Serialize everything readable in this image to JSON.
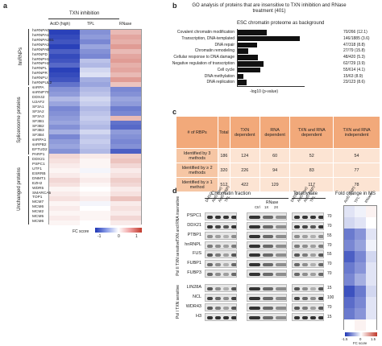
{
  "panel_a": {
    "label": "a",
    "header": "TXN inhibition",
    "columns": [
      "ActD (high)",
      "TPL",
      "RNase"
    ],
    "groups": [
      "hnRNPs",
      "Spliceosome proteins",
      "Unchanged proteins"
    ],
    "rows": [
      "hnRNPA0",
      "hnRNPA1",
      "hnRNPA2B1",
      "hnRNPA3",
      "hnRNPAB",
      "hnRNPD",
      "hnRNPH1",
      "hnRNPH2",
      "hnRNPL",
      "hnRNPR",
      "hnRNPU",
      "hnRNPUL2",
      "snRPA",
      "snRNP70",
      "DDX42",
      "U2AF2",
      "SF3A1",
      "SF3A2",
      "SF3A3",
      "SF3B1",
      "SF3B2",
      "SF3B3",
      "SF3B4",
      "snRPA1",
      "snRPB2",
      "EFTUD2",
      "PARP1",
      "DDX21",
      "PSPC1",
      "UTF1",
      "ESRRB",
      "DNMT1",
      "EZH2",
      "WDR5",
      "SMARCA5",
      "TOP1",
      "MCM7",
      "MCM6",
      "MCM2",
      "MCM5",
      "MCM6"
    ],
    "values": [
      [
        -0.95,
        -0.55,
        0.35
      ],
      [
        -0.9,
        -0.5,
        0.45
      ],
      [
        -0.85,
        -0.6,
        0.4
      ],
      [
        -0.95,
        -0.45,
        0.5
      ],
      [
        -0.8,
        -0.55,
        0.35
      ],
      [
        -0.9,
        -0.6,
        0.45
      ],
      [
        -0.85,
        -0.3,
        0.5
      ],
      [
        -0.75,
        -0.35,
        0.4
      ],
      [
        -0.95,
        -0.2,
        0.45
      ],
      [
        -0.9,
        -0.15,
        0.35
      ],
      [
        -0.85,
        -0.4,
        0.5
      ],
      [
        -0.7,
        -0.45,
        0.3
      ],
      [
        -0.55,
        -0.35,
        -0.6
      ],
      [
        -0.5,
        -0.3,
        -0.55
      ],
      [
        -0.35,
        -0.2,
        -0.45
      ],
      [
        -0.45,
        -0.25,
        -0.5
      ],
      [
        -0.6,
        -0.35,
        -0.65
      ],
      [
        -0.55,
        -0.3,
        -0.6
      ],
      [
        -0.5,
        -0.25,
        0.35
      ],
      [
        -0.45,
        -0.3,
        -0.7
      ],
      [
        -0.55,
        -0.35,
        -0.75
      ],
      [
        -0.4,
        -0.2,
        -0.5
      ],
      [
        -0.6,
        -0.3,
        -0.55
      ],
      [
        -0.5,
        -0.25,
        -0.6
      ],
      [
        -0.45,
        -0.3,
        -0.55
      ],
      [
        -0.55,
        -0.35,
        -0.8
      ],
      [
        0.2,
        0.1,
        0.25
      ],
      [
        0.15,
        0.05,
        0.3
      ],
      [
        0.1,
        0.05,
        0.2
      ],
      [
        0.05,
        -0.05,
        0.1
      ],
      [
        0.1,
        0.05,
        0.15
      ],
      [
        0.2,
        0.1,
        0.25
      ],
      [
        0.15,
        0.05,
        0.2
      ],
      [
        0.05,
        0.0,
        0.1
      ],
      [
        0.1,
        0.05,
        0.15
      ],
      [
        0.15,
        0.1,
        0.3
      ],
      [
        0.05,
        -0.05,
        0.1
      ],
      [
        0.1,
        0.0,
        0.15
      ],
      [
        0.05,
        0.05,
        0.1
      ],
      [
        0.1,
        0.05,
        0.2
      ],
      [
        0.05,
        0.0,
        0.1
      ]
    ],
    "legend_title": "FC score",
    "legend_ticks": [
      "-1",
      "0",
      "1"
    ]
  },
  "panel_b": {
    "label": "b",
    "title": "GO analysis of proteins that are insensitive to TXN inhibition and RNase treatment (401)",
    "subtitle": "ESC chromatin proteome as background",
    "xlabel": "-log10 (p-value)"
  },
  "chart_data": {
    "type": "bar",
    "categories": [
      "Covalent chromatin modification",
      "Transcription, DNA-templated",
      "DNA repair",
      "Chromatin remodeling",
      "Cellular response to DNA damage",
      "Negative regulation of transcription",
      "Cell cycle",
      "DNA methylation",
      "DNA replication"
    ],
    "values": [
      70,
      146,
      47,
      27,
      48,
      62,
      55,
      15,
      23
    ],
    "annotations": [
      "70/266 (12.1)",
      "146/1885 (3.6)",
      "47/318 (8.8)",
      "27/79 (15.8)",
      "48/420 (5.3)",
      "62/729 (3.9)",
      "55/614 (4.1)",
      "15/63 (8.9)",
      "23/123 (8.6)"
    ],
    "title": "",
    "xlabel": "-log10 (p-value)",
    "ylabel": ""
  },
  "panel_c": {
    "label": "c",
    "headers": [
      "# of RBPs",
      "Total",
      "TXN dependent",
      "RNA dependent",
      "TXN and RNA dependent",
      "TXN and RNA independent"
    ],
    "rows": [
      [
        "Identified by 3 methods",
        "186",
        "124",
        "60",
        "52",
        "54"
      ],
      [
        "Identified by ≥ 2 methods",
        "320",
        "226",
        "94",
        "83",
        "77"
      ],
      [
        "Identified by ≥ 1 method",
        "512",
        "422",
        "129",
        "117",
        "78"
      ]
    ]
  },
  "panel_d": {
    "label": "d",
    "section_chromatin": "Chromatin fraction",
    "section_lysate": "Total lysate",
    "section_fold": "Fold change in MS",
    "lanes_a": [
      "DMSO",
      "ActD (low)",
      "ActD (high)",
      "TPL"
    ],
    "lanes_b": [
      "Ctrl",
      "1X",
      "2X"
    ],
    "rnase_label": "RNase",
    "lanes_c": [
      "DMSO",
      "ActD (low)",
      "ActD (high)",
      "TPL"
    ],
    "proteins": [
      "PSPC1",
      "DDX21",
      "PTBP1",
      "hnRNPL",
      "FUS",
      "FUBP1",
      "FUBP3",
      "LIN28A",
      "NCL",
      "WDR43",
      "H3"
    ],
    "kda": [
      "70",
      "70",
      "55",
      "70",
      "55",
      "70",
      "70",
      "15",
      "100",
      "70",
      "15"
    ],
    "groups": [
      "TXN and RNA insensitive",
      "Pol II TXN sensitive",
      "Pol I TXN sensitive"
    ],
    "heat_cols": [
      "ActD (high)",
      "TPL",
      "RNase"
    ],
    "legend_title": "FC score",
    "legend_ticks": [
      "-1.5",
      "0",
      "1.5"
    ]
  },
  "colors": {
    "blue": "#2a3fbf",
    "red": "#c0392b",
    "table_header": "#f2a97a",
    "table_body": "#fce4d3"
  }
}
